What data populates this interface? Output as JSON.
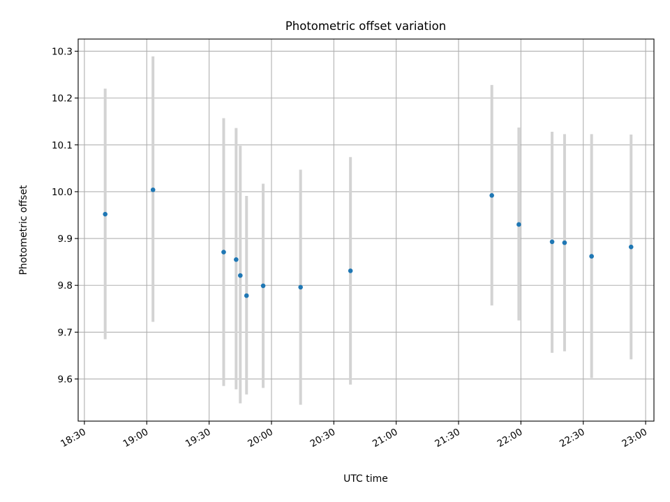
{
  "chart_data": {
    "type": "scatter",
    "title": "Photometric offset variation",
    "xlabel": "UTC time",
    "ylabel": "Photometric offset",
    "grid": true,
    "legend": "none",
    "xlim": [
      "18:27",
      "23:04"
    ],
    "ylim": [
      9.51,
      10.326
    ],
    "x_ticks": [
      "18:30",
      "19:00",
      "19:30",
      "20:00",
      "20:30",
      "21:00",
      "21:30",
      "22:00",
      "22:30",
      "23:00"
    ],
    "y_ticks": [
      9.6,
      9.7,
      9.8,
      9.9,
      10.0,
      10.1,
      10.2,
      10.3
    ],
    "y_tick_labels": [
      "9.6",
      "9.7",
      "9.8",
      "9.9",
      "10.0",
      "10.1",
      "10.2",
      "10.3"
    ],
    "colors": {
      "points": "#1f77b4",
      "error_bars": "#d3d3d3"
    },
    "points": [
      {
        "t": "18:40",
        "y": 9.952,
        "y_low": 9.685,
        "y_high": 10.22
      },
      {
        "t": "19:03",
        "y": 10.004,
        "y_low": 9.722,
        "y_high": 10.289
      },
      {
        "t": "19:37",
        "y": 9.871,
        "y_low": 9.585,
        "y_high": 10.157
      },
      {
        "t": "19:43",
        "y": 9.855,
        "y_low": 9.578,
        "y_high": 10.136
      },
      {
        "t": "19:45",
        "y": 9.821,
        "y_low": 9.548,
        "y_high": 10.098
      },
      {
        "t": "19:48",
        "y": 9.778,
        "y_low": 9.567,
        "y_high": 9.991
      },
      {
        "t": "19:56",
        "y": 9.799,
        "y_low": 9.581,
        "y_high": 10.017
      },
      {
        "t": "20:14",
        "y": 9.796,
        "y_low": 9.545,
        "y_high": 10.047
      },
      {
        "t": "20:38",
        "y": 9.831,
        "y_low": 9.588,
        "y_high": 10.074
      },
      {
        "t": "21:46",
        "y": 9.992,
        "y_low": 9.757,
        "y_high": 10.228
      },
      {
        "t": "21:59",
        "y": 9.93,
        "y_low": 9.725,
        "y_high": 10.137
      },
      {
        "t": "22:15",
        "y": 9.893,
        "y_low": 9.656,
        "y_high": 10.128
      },
      {
        "t": "22:21",
        "y": 9.891,
        "y_low": 9.659,
        "y_high": 10.123
      },
      {
        "t": "22:34",
        "y": 9.862,
        "y_low": 9.602,
        "y_high": 10.123
      },
      {
        "t": "22:53",
        "y": 9.882,
        "y_low": 9.642,
        "y_high": 10.122
      }
    ]
  }
}
